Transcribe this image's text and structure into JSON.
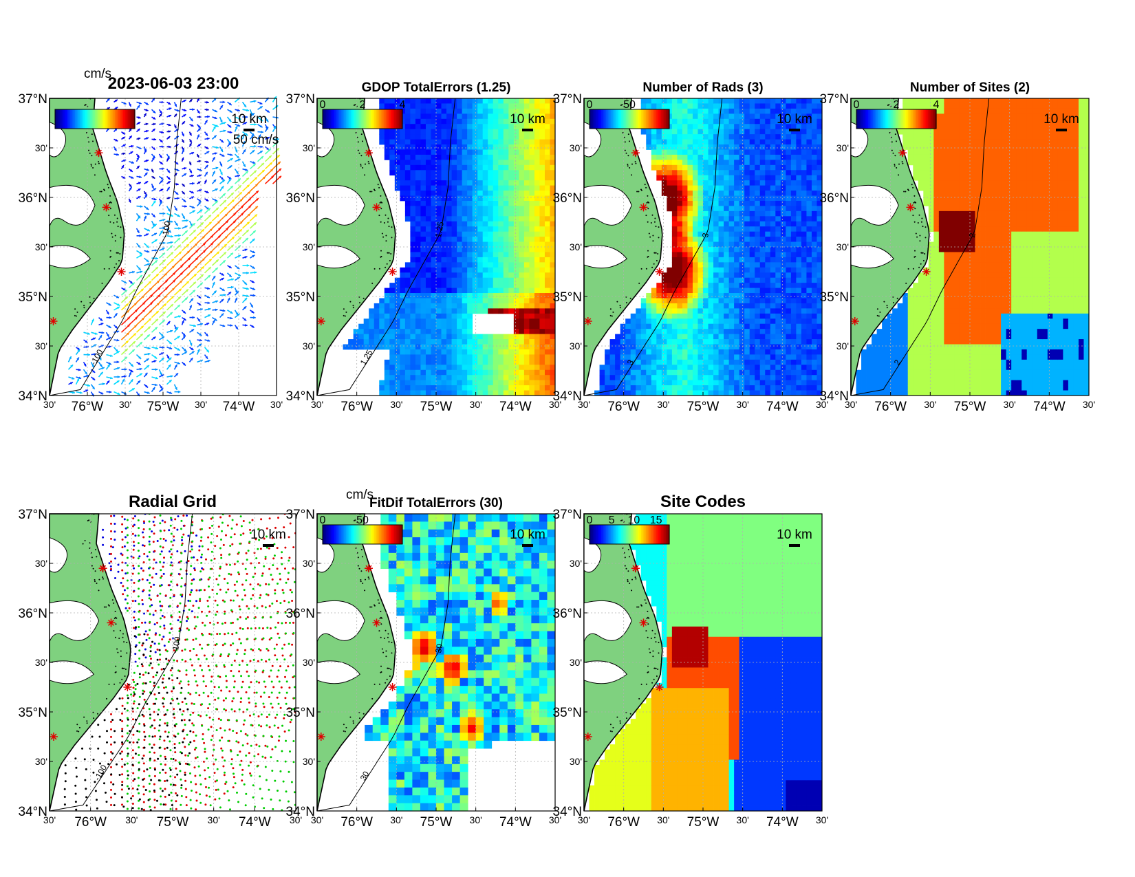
{
  "figure": {
    "timestamp": "2023-06-03 23:00",
    "units_label": "cm/s",
    "vector_scale_label": "50 cm/s",
    "distance_scale_label": "10 km"
  },
  "axes_common": {
    "lat_ticks": [
      {
        "value": 37.0,
        "label": "37°N",
        "major": true
      },
      {
        "value": 36.5,
        "label": "30'",
        "major": false
      },
      {
        "value": 36.0,
        "label": "36°N",
        "major": true
      },
      {
        "value": 35.5,
        "label": "30'",
        "major": false
      },
      {
        "value": 35.0,
        "label": "35°N",
        "major": true
      },
      {
        "value": 34.5,
        "label": "30'",
        "major": false
      },
      {
        "value": 34.0,
        "label": "34°N",
        "major": true
      }
    ],
    "lon_ticks": [
      {
        "value": -76.5,
        "label": "30'",
        "major": false
      },
      {
        "value": -76.0,
        "label": "76°W",
        "major": true
      },
      {
        "value": -75.5,
        "label": "30'",
        "major": false
      },
      {
        "value": -75.0,
        "label": "75°W",
        "major": true
      },
      {
        "value": -74.5,
        "label": "30'",
        "major": false
      },
      {
        "value": -74.0,
        "label": "74°W",
        "major": true
      },
      {
        "value": -73.5,
        "label": "30'",
        "major": false
      }
    ],
    "xlim": [
      -76.5,
      -73.5
    ],
    "ylim": [
      34.0,
      37.0
    ],
    "grid": true,
    "site_markers": [
      {
        "lon": -75.85,
        "lat": 36.45
      },
      {
        "lon": -75.75,
        "lat": 35.9
      },
      {
        "lon": -75.55,
        "lat": 35.25
      },
      {
        "lon": -76.45,
        "lat": 34.75
      }
    ],
    "colors": {
      "land": "#7fd17f",
      "coast": "#000000",
      "grid": "#b0b0b0",
      "site_marker": "#e00000"
    }
  },
  "chart_data": [
    {
      "id": "total-vectors",
      "type": "quiver",
      "title": "",
      "timestamp": "2023-06-03 23:00",
      "colorbar": {
        "ticks": [],
        "range": [
          0,
          100
        ],
        "units": "cm/s"
      },
      "contours": [
        {
          "level": -100,
          "label": "-100"
        }
      ],
      "notes": "surface current vectors colored by speed; strong northeastward jet"
    },
    {
      "id": "gdop-total-errors",
      "type": "heatmap",
      "title": "GDOP TotalErrors (1.25)",
      "colorbar": {
        "ticks": [
          "0",
          "2",
          "4"
        ],
        "range": [
          0,
          4
        ]
      },
      "contours": [
        {
          "level": 1.25,
          "label": "1.25"
        }
      ]
    },
    {
      "id": "number-of-rads",
      "type": "heatmap",
      "title": "Number of Rads (3)",
      "colorbar": {
        "ticks": [
          "0",
          "50"
        ],
        "range": [
          0,
          100
        ]
      },
      "contours": [
        {
          "level": 3,
          "label": "3"
        }
      ]
    },
    {
      "id": "number-of-sites",
      "type": "heatmap",
      "title": "Number of Sites (2)",
      "colorbar": {
        "ticks": [
          "0",
          "2",
          "4"
        ],
        "range": [
          0,
          4
        ]
      },
      "contours": [
        {
          "level": 2,
          "label": "2"
        }
      ]
    },
    {
      "id": "radial-grid",
      "type": "scatter",
      "title": "Radial Grid",
      "series": [
        {
          "color": "#0000dd"
        },
        {
          "color": "#dd0000"
        },
        {
          "color": "#00cc00"
        },
        {
          "color": "#000000"
        }
      ],
      "contours": [
        {
          "level": -100,
          "label": "-100"
        }
      ]
    },
    {
      "id": "fitdif-total-errors",
      "type": "heatmap",
      "title": "FitDif TotalErrors (30)",
      "units_label": "cm/s",
      "colorbar": {
        "ticks": [
          "0",
          "50"
        ],
        "range": [
          0,
          100
        ]
      },
      "contours": [
        {
          "level": 30,
          "label": "30"
        }
      ]
    },
    {
      "id": "site-codes",
      "type": "heatmap",
      "title": "Site Codes",
      "colorbar": {
        "ticks": [
          "0",
          "5",
          "10",
          "15"
        ],
        "range": [
          0,
          18
        ]
      }
    }
  ]
}
